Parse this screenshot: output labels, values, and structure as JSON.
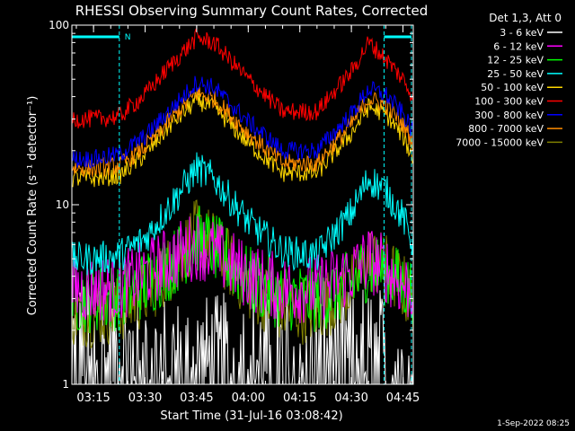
{
  "chart_data": {
    "type": "line",
    "title": "RHESSI Observing Summary Count Rates, Corrected",
    "xlabel": "Start Time (31-Jul-16 03:08:42)",
    "ylabel": "Corrected Count Rate (s⁻¹ detector⁻¹)",
    "yscale": "log",
    "ylim": [
      1,
      100
    ],
    "xlim": [
      "03:08:42",
      "04:48:00"
    ],
    "x_ticks": [
      "03:15",
      "03:30",
      "03:45",
      "04:00",
      "04:15",
      "04:30",
      "04:45"
    ],
    "y_ticks": [
      "1",
      "10",
      "100"
    ],
    "legend_title": "Det 1,3, Att 0",
    "legend_position": "right",
    "footer": "1-Sep-2022 08:25",
    "markers": {
      "night_label": "N",
      "dashed_times": [
        "03:22:30",
        "04:39:30",
        "04:52:30"
      ],
      "bars": [
        [
          "03:08:42",
          "03:22:30"
        ],
        [
          "04:39:30",
          "04:52:30"
        ]
      ]
    },
    "x_times": [
      "03:08:42",
      "03:15",
      "03:22:30",
      "03:30",
      "03:37:30",
      "03:45",
      "03:50",
      "04:00",
      "04:10",
      "04:20",
      "04:30",
      "04:35",
      "04:40",
      "04:45",
      "04:48"
    ],
    "series": [
      {
        "name": "3 - 6 keV",
        "color": "#ffffff",
        "values": [
          1.7,
          1.6,
          1.5,
          1.4,
          1.3,
          1.3,
          1.3,
          1.4,
          1.4,
          1.5,
          1.6,
          1.5,
          1.4,
          1.3,
          1.2
        ]
      },
      {
        "name": "6 - 12 keV",
        "color": "#ff00ff",
        "values": [
          3.4,
          3.4,
          3.5,
          4.1,
          5.0,
          6.0,
          5.4,
          4.0,
          3.4,
          3.4,
          4.2,
          5.0,
          4.4,
          3.6,
          3.3
        ]
      },
      {
        "name": "12 - 25 keV",
        "color": "#00ff00",
        "values": [
          3.0,
          3.0,
          3.1,
          3.6,
          4.6,
          6.5,
          5.8,
          3.8,
          3.1,
          3.0,
          3.6,
          4.6,
          4.2,
          3.6,
          3.3
        ]
      },
      {
        "name": "25 - 50 keV",
        "color": "#00ffff",
        "values": [
          5.0,
          5.0,
          5.2,
          6.5,
          10.0,
          16.0,
          14.0,
          8.0,
          5.5,
          5.2,
          9.0,
          14.0,
          12.0,
          8.5,
          6.0
        ]
      },
      {
        "name": "50 - 100 keV",
        "color": "#ffd700",
        "values": [
          14.0,
          14.0,
          14.5,
          19.0,
          28.0,
          38.0,
          35.0,
          22.0,
          15.0,
          15.0,
          25.0,
          35.0,
          32.0,
          24.0,
          18.0
        ]
      },
      {
        "name": "100 - 300 keV",
        "color": "#ff0000",
        "values": [
          30.0,
          30.0,
          31.0,
          41.0,
          60.0,
          85.0,
          80.0,
          50.0,
          33.0,
          33.0,
          55.0,
          80.0,
          65.0,
          50.0,
          40.0
        ]
      },
      {
        "name": "300 - 800 keV",
        "color": "#0000ff",
        "values": [
          18.0,
          18.0,
          19.0,
          24.0,
          34.0,
          48.0,
          45.0,
          29.0,
          20.0,
          20.0,
          32.0,
          44.0,
          41.0,
          32.0,
          25.0
        ]
      },
      {
        "name": "800 - 7000 keV",
        "color": "#ff8c00",
        "values": [
          16.0,
          16.0,
          16.5,
          21.0,
          30.0,
          42.0,
          39.0,
          25.0,
          17.0,
          17.0,
          28.0,
          39.0,
          36.0,
          28.0,
          22.0
        ]
      },
      {
        "name": "7000 - 15000 keV",
        "color": "#808000",
        "values": [
          2.5,
          2.5,
          2.6,
          3.2,
          4.5,
          7.0,
          6.0,
          3.5,
          2.6,
          2.6,
          3.5,
          5.0,
          4.5,
          3.5,
          2.8
        ]
      }
    ]
  }
}
